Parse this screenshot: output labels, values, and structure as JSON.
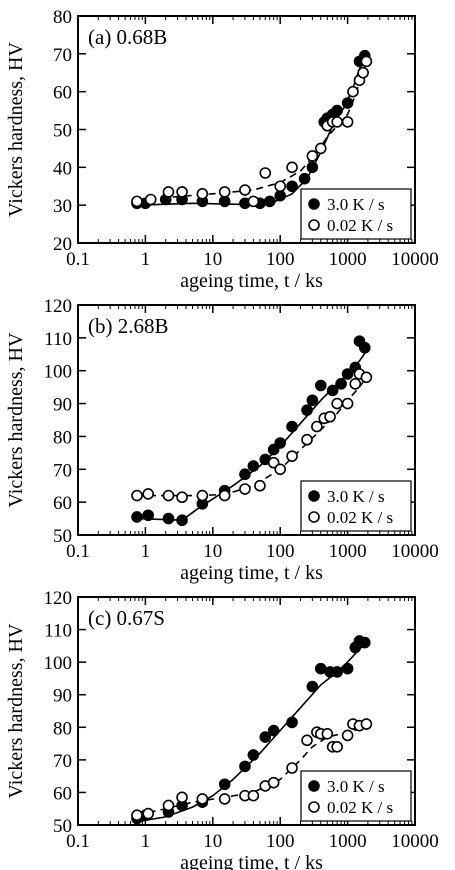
{
  "chart_data": [
    {
      "type": "scatter",
      "panel_label": "(a) 0.68B",
      "xlabel": "ageing time, t / ks",
      "ylabel": "Vickers hardness, HV",
      "xscale": "log",
      "xlim": [
        0.1,
        10000
      ],
      "ylim": [
        20,
        80
      ],
      "x_ticks": [
        "0.1",
        "1",
        "10",
        "100",
        "1000",
        "10000"
      ],
      "y_ticks": [
        "20",
        "30",
        "40",
        "50",
        "60",
        "70",
        "80"
      ],
      "legend_position": "bottom-right",
      "series": [
        {
          "name": "3.0 K / s",
          "marker": "filled-circle",
          "line": "solid",
          "points": [
            [
              0.75,
              30.5
            ],
            [
              1.0,
              30.5
            ],
            [
              2.0,
              31.5
            ],
            [
              3.5,
              31.5
            ],
            [
              7,
              31
            ],
            [
              15,
              31
            ],
            [
              30,
              30.5
            ],
            [
              50,
              30.5
            ],
            [
              70,
              31
            ],
            [
              100,
              32.5
            ],
            [
              150,
              35
            ],
            [
              230,
              37
            ],
            [
              300,
              40
            ],
            [
              450,
              52
            ],
            [
              500,
              53
            ],
            [
              600,
              54
            ],
            [
              700,
              55
            ],
            [
              1000,
              57
            ],
            [
              1500,
              68
            ],
            [
              1800,
              69.5
            ]
          ],
          "curve": [
            [
              0.75,
              30
            ],
            [
              5,
              30.5
            ],
            [
              30,
              30.2
            ],
            [
              80,
              30.8
            ],
            [
              150,
              33
            ],
            [
              250,
              37
            ],
            [
              400,
              44
            ],
            [
              600,
              51
            ],
            [
              900,
              56
            ],
            [
              1200,
              61
            ],
            [
              1500,
              66
            ],
            [
              1900,
              70
            ]
          ]
        },
        {
          "name": "0.02 K / s",
          "marker": "open-circle",
          "line": "dashed",
          "points": [
            [
              0.75,
              31
            ],
            [
              1.2,
              31.5
            ],
            [
              2.2,
              33.5
            ],
            [
              3.5,
              33.5
            ],
            [
              7,
              33
            ],
            [
              15,
              33.5
            ],
            [
              30,
              34
            ],
            [
              40,
              31
            ],
            [
              60,
              38.5
            ],
            [
              100,
              35
            ],
            [
              150,
              40
            ],
            [
              300,
              43
            ],
            [
              400,
              45
            ],
            [
              500,
              51
            ],
            [
              600,
              52
            ],
            [
              700,
              52
            ],
            [
              1000,
              52
            ],
            [
              1200,
              60
            ],
            [
              1500,
              63
            ],
            [
              1700,
              65
            ],
            [
              1900,
              68
            ]
          ],
          "curve": [
            [
              0.75,
              31
            ],
            [
              2,
              32
            ],
            [
              10,
              33
            ],
            [
              40,
              34
            ],
            [
              100,
              36
            ],
            [
              200,
              39
            ],
            [
              350,
              44
            ],
            [
              500,
              48
            ],
            [
              700,
              51
            ],
            [
              1000,
              54
            ],
            [
              1300,
              59
            ],
            [
              1600,
              64
            ],
            [
              1900,
              68
            ]
          ]
        }
      ]
    },
    {
      "type": "scatter",
      "panel_label": "(b) 2.68B",
      "xlabel": "ageing time, t / ks",
      "ylabel": "Vickers hardness, HV",
      "xscale": "log",
      "xlim": [
        0.1,
        10000
      ],
      "ylim": [
        50,
        120
      ],
      "x_ticks": [
        "0.1",
        "1",
        "10",
        "100",
        "1000",
        "10000"
      ],
      "y_ticks": [
        "50",
        "60",
        "70",
        "80",
        "90",
        "100",
        "110",
        "120"
      ],
      "legend_position": "bottom-right",
      "series": [
        {
          "name": "3.0 K / s",
          "marker": "filled-circle",
          "line": "solid",
          "points": [
            [
              0.75,
              55.5
            ],
            [
              1.1,
              56
            ],
            [
              2.2,
              55
            ],
            [
              3.5,
              54.5
            ],
            [
              7,
              59.5
            ],
            [
              15,
              63.5
            ],
            [
              30,
              68.5
            ],
            [
              40,
              71
            ],
            [
              60,
              73
            ],
            [
              80,
              76
            ],
            [
              100,
              78
            ],
            [
              150,
              83
            ],
            [
              250,
              88
            ],
            [
              300,
              91
            ],
            [
              400,
              95.5
            ],
            [
              600,
              94
            ],
            [
              800,
              96
            ],
            [
              1000,
              99
            ],
            [
              1300,
              101
            ],
            [
              1500,
              109
            ],
            [
              1800,
              107
            ]
          ],
          "curve": [
            [
              0.75,
              55
            ],
            [
              3.5,
              54.5
            ],
            [
              6,
              58
            ],
            [
              10,
              61
            ],
            [
              20,
              65
            ],
            [
              50,
              71
            ],
            [
              100,
              77
            ],
            [
              200,
              84
            ],
            [
              400,
              91
            ],
            [
              700,
              96
            ],
            [
              1000,
              99
            ],
            [
              1500,
              103
            ],
            [
              1900,
              106
            ]
          ]
        },
        {
          "name": "0.02 K / s",
          "marker": "open-circle",
          "line": "dashed",
          "points": [
            [
              0.75,
              62
            ],
            [
              1.1,
              62.5
            ],
            [
              2.2,
              62
            ],
            [
              3.5,
              61.5
            ],
            [
              7,
              62
            ],
            [
              15,
              62
            ],
            [
              30,
              64
            ],
            [
              50,
              65
            ],
            [
              80,
              72
            ],
            [
              100,
              70
            ],
            [
              150,
              74
            ],
            [
              250,
              79
            ],
            [
              350,
              83
            ],
            [
              450,
              85.5
            ],
            [
              550,
              86
            ],
            [
              700,
              90
            ],
            [
              1000,
              90
            ],
            [
              1300,
              96
            ],
            [
              1500,
              99
            ],
            [
              1900,
              98
            ]
          ],
          "curve": [
            [
              0.75,
              62
            ],
            [
              5,
              62
            ],
            [
              15,
              62.3
            ],
            [
              40,
              65
            ],
            [
              100,
              70
            ],
            [
              200,
              76
            ],
            [
              400,
              82
            ],
            [
              700,
              87
            ],
            [
              1000,
              91
            ],
            [
              1500,
              95
            ],
            [
              1900,
              98
            ]
          ]
        }
      ]
    },
    {
      "type": "scatter",
      "panel_label": "(c) 0.67S",
      "xlabel": "ageing time, t / ks",
      "ylabel": "Vickers hardness, HV",
      "xscale": "log",
      "xlim": [
        0.1,
        10000
      ],
      "ylim": [
        50,
        120
      ],
      "x_ticks": [
        "0.1",
        "1",
        "10",
        "100",
        "1000",
        "10000"
      ],
      "y_ticks": [
        "50",
        "60",
        "70",
        "80",
        "90",
        "100",
        "110",
        "120"
      ],
      "legend_position": "bottom-right",
      "series": [
        {
          "name": "3.0 K / s",
          "marker": "filled-circle",
          "line": "solid",
          "points": [
            [
              0.75,
              52
            ],
            [
              1.0,
              53
            ],
            [
              2.2,
              54
            ],
            [
              3.5,
              56
            ],
            [
              7,
              57
            ],
            [
              15,
              62.5
            ],
            [
              30,
              68
            ],
            [
              40,
              71.5
            ],
            [
              60,
              77
            ],
            [
              80,
              79
            ],
            [
              150,
              81.5
            ],
            [
              300,
              92.5
            ],
            [
              400,
              98
            ],
            [
              550,
              97
            ],
            [
              700,
              97
            ],
            [
              1000,
              98
            ],
            [
              1300,
              104.5
            ],
            [
              1500,
              106.5
            ],
            [
              1800,
              106
            ]
          ],
          "curve": [
            [
              0.75,
              51
            ],
            [
              2,
              52.5
            ],
            [
              5,
              55.5
            ],
            [
              10,
              59
            ],
            [
              20,
              64
            ],
            [
              50,
              72
            ],
            [
              100,
              79
            ],
            [
              200,
              86
            ],
            [
              400,
              93
            ],
            [
              700,
              97
            ],
            [
              1000,
              100
            ],
            [
              1500,
              104
            ],
            [
              1900,
              106
            ]
          ]
        },
        {
          "name": "0.02 K / s",
          "marker": "open-circle",
          "line": "dashed",
          "points": [
            [
              0.75,
              53
            ],
            [
              1.1,
              53.5
            ],
            [
              2.2,
              56
            ],
            [
              3.5,
              58.5
            ],
            [
              7,
              58
            ],
            [
              15,
              58
            ],
            [
              30,
              59
            ],
            [
              40,
              59
            ],
            [
              60,
              62
            ],
            [
              80,
              63
            ],
            [
              150,
              67.5
            ],
            [
              250,
              76
            ],
            [
              350,
              78.5
            ],
            [
              400,
              78
            ],
            [
              500,
              78
            ],
            [
              600,
              74
            ],
            [
              700,
              74
            ],
            [
              1000,
              77.5
            ],
            [
              1200,
              81
            ],
            [
              1500,
              80.5
            ],
            [
              1900,
              81
            ]
          ],
          "curve": [
            [
              0.75,
              53
            ],
            [
              2,
              55
            ],
            [
              5,
              57
            ],
            [
              15,
              58.5
            ],
            [
              40,
              60
            ],
            [
              100,
              64
            ],
            [
              200,
              70
            ],
            [
              300,
              74
            ],
            [
              500,
              77
            ],
            [
              1000,
              78.5
            ],
            [
              1900,
              80
            ]
          ]
        }
      ]
    }
  ]
}
